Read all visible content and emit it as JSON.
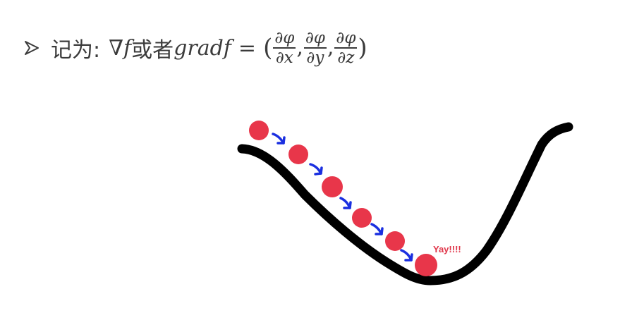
{
  "formula": {
    "prefix": "记为:",
    "nabla_f": "∇f",
    "connector": "或者",
    "grad_f": "gradf",
    "equals": "=",
    "open_paren": "(",
    "close_paren": ")",
    "fractions": [
      {
        "num": "∂φ",
        "den": "∂x"
      },
      {
        "num": "∂φ",
        "den": "∂y"
      },
      {
        "num": "∂φ",
        "den": "∂z"
      }
    ],
    "separator": ","
  },
  "diagram": {
    "annotation": "Yay!!!!",
    "colors": {
      "curve": "#000000",
      "ball": "#e8364a",
      "arrow": "#1a2fe0",
      "annotation": "#e0364a",
      "text": "#3b3b3b"
    }
  }
}
